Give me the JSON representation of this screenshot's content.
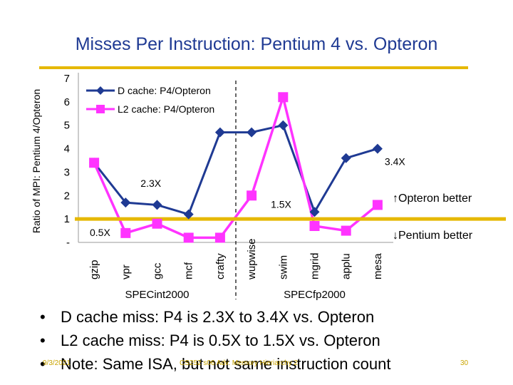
{
  "slide": {
    "title": "Misses Per Instruction: Pentium 4 vs. Opteron",
    "bullets": [
      "D cache miss: P4 is 2.3X to 3.4X vs. Opteron",
      "L2 cache miss: P4 is 0.5X to 1.5X vs. Opteron",
      "Note: Same ISA, but not same instruction count"
    ],
    "bullet_glyph": "•",
    "footer": {
      "date": "9/3/2021",
      "course": "CS252 s06 Adv. Memory Hieriarchy 2",
      "page": "30"
    }
  },
  "colors": {
    "d_cache": "#1f3a93",
    "l2_cache": "#ff33ff",
    "threshold": "#e6b800",
    "title": "#1f3a93"
  },
  "chart_data": {
    "type": "line",
    "ylabel": "Ratio of MPI: Pentium 4/Opteron",
    "ylim": [
      0,
      7
    ],
    "yticks": [
      {
        "value": 0,
        "label": "-"
      },
      {
        "value": 1,
        "label": "1"
      },
      {
        "value": 2,
        "label": "2"
      },
      {
        "value": 3,
        "label": "3"
      },
      {
        "value": 4,
        "label": "4"
      },
      {
        "value": 5,
        "label": "5"
      },
      {
        "value": 6,
        "label": "6"
      },
      {
        "value": 7,
        "label": "7"
      }
    ],
    "categories": [
      "gzip",
      "vpr",
      "gcc",
      "mcf",
      "crafty",
      "wupwise",
      "swim",
      "mgrid",
      "applu",
      "mesa"
    ],
    "series": [
      {
        "name": "D cache:  P4/Opteron",
        "color": "#1f3a93",
        "marker": "diamond",
        "values": [
          3.4,
          1.7,
          1.6,
          1.2,
          4.7,
          4.7,
          5.0,
          1.3,
          3.6,
          4.0
        ]
      },
      {
        "name": "L2 cache:  P4/Opteron",
        "color": "#ff33ff",
        "marker": "square",
        "values": [
          3.4,
          0.4,
          0.8,
          0.2,
          0.2,
          2.0,
          6.2,
          0.7,
          0.5,
          1.6
        ]
      }
    ],
    "group_labels": [
      "SPECint2000",
      "SPECfp2000"
    ],
    "divider_after_index": 4,
    "threshold_value": 1,
    "annotations": {
      "d_max": "3.4X",
      "d_min": "2.3X",
      "l2_max": "1.5X",
      "l2_min": "0.5X",
      "opteron_better": "↑Opteron better",
      "pentium_better": "↓Pentium better"
    },
    "legend_position": "top-left"
  }
}
